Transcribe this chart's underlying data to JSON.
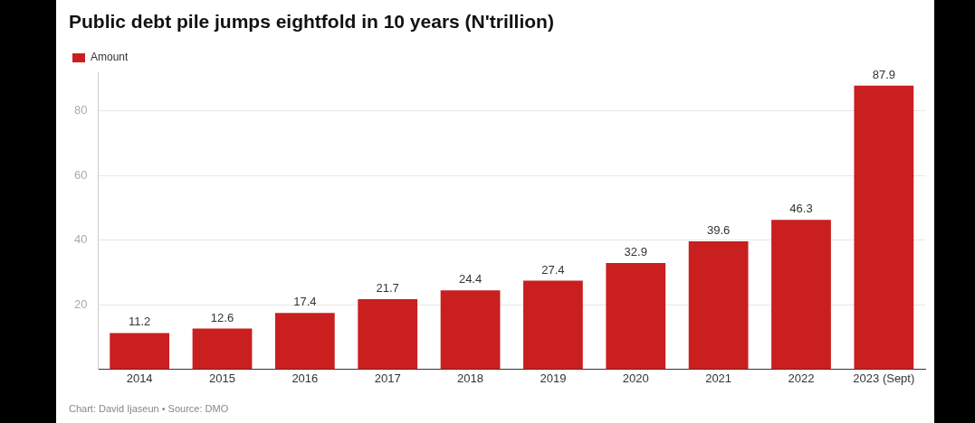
{
  "chart_data": {
    "type": "bar",
    "title": "Public debt pile jumps eightfold in 10 years (N'trillion)",
    "categories": [
      "2014",
      "2015",
      "2016",
      "2017",
      "2018",
      "2019",
      "2020",
      "2021",
      "2022",
      "2023 (Sept)"
    ],
    "series": [
      {
        "name": "Amount",
        "color": "#c91f1f",
        "values": [
          11.2,
          12.6,
          17.4,
          21.7,
          24.4,
          27.4,
          32.9,
          39.6,
          46.3,
          87.9
        ]
      }
    ],
    "ylim": [
      0,
      92
    ],
    "yticks": [
      20,
      40,
      60,
      80
    ],
    "grid": "y",
    "legend": "top left",
    "data_labels": true,
    "annotations": [
      "Chart: David Ijaseun • Source: DMO"
    ]
  }
}
